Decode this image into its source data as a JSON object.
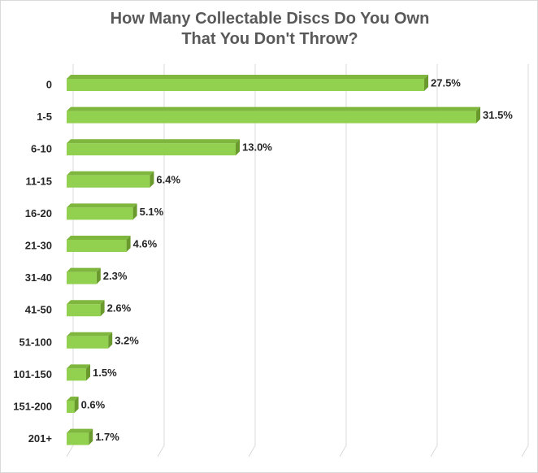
{
  "chart_data": {
    "type": "bar",
    "orientation": "horizontal",
    "title_lines": [
      "How Many Collectable Discs Do You Own",
      "That You Don't Throw?"
    ],
    "categories": [
      "0",
      "1-5",
      "6-10",
      "11-15",
      "16-20",
      "21-30",
      "31-40",
      "41-50",
      "51-100",
      "101-150",
      "151-200",
      "201+"
    ],
    "values": [
      27.5,
      31.5,
      13.0,
      6.4,
      5.1,
      4.6,
      2.3,
      2.6,
      3.2,
      1.5,
      0.6,
      1.7
    ],
    "data_labels": [
      "27.5%",
      "31.5%",
      "13.0%",
      "6.4%",
      "5.1%",
      "4.6%",
      "2.3%",
      "2.6%",
      "3.2%",
      "1.5%",
      "0.6%",
      "1.7%"
    ],
    "xlim": [
      0,
      35
    ],
    "gridlines": true,
    "legend": "none",
    "colors": {
      "bar": "#92d050",
      "bar_side": "#6a9a2e",
      "bar_top": "#7fb63d",
      "grid": "#d9d9d9"
    }
  }
}
